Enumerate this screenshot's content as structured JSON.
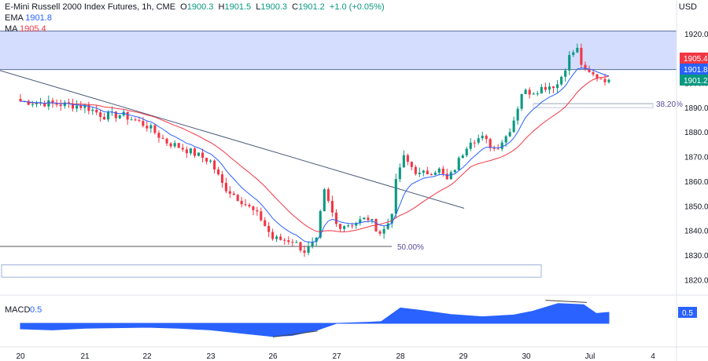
{
  "header": {
    "title": "E-Mini Russell 2000 Index Futures, 1h, CME",
    "open_label": "O",
    "open": "1900.3",
    "high_label": "H",
    "high": "1901.5",
    "low_label": "L",
    "low": "1900.3",
    "close_label": "C",
    "close": "1901.2",
    "change": "+1.0 (+0.05%)",
    "ema_label": "EMA",
    "ema_value": "1901.8",
    "ma_label": "MA",
    "ma_value": "1905.4",
    "currency": "USD"
  },
  "colors": {
    "up": "#089981",
    "down": "#f23645",
    "ema": "#2962ff",
    "ma": "#f23645",
    "trendline": "#4a5a7a",
    "zone": "#c7d2fe",
    "macd": "#2962ff"
  },
  "chart_data": [
    {
      "type": "candlestick",
      "title": "E-Mini Russell 2000 Index Futures, 1h, CME",
      "x_ticks": [
        "20",
        "21",
        "22",
        "23",
        "26",
        "27",
        "28",
        "29",
        "30",
        "Jul",
        "4"
      ],
      "y_ticks": [
        1820.0,
        1830.0,
        1840.0,
        1850.0,
        1860.0,
        1870.0,
        1880.0,
        1890.0,
        1900.0,
        1910.0,
        1920.0
      ],
      "ylim": [
        1815,
        1926
      ],
      "price_labels": [
        {
          "value": "1905.4",
          "color": "#f23645"
        },
        {
          "value": "1901.8",
          "color": "#2962ff"
        },
        {
          "value": "1901.2",
          "color": "#089981"
        }
      ],
      "annotations": [
        {
          "text": "50.00%",
          "price": 1833.5
        },
        {
          "text": "38.20%",
          "price": 1891.5
        }
      ],
      "resistance_zone": [
        1905.4,
        1921
      ],
      "support_zone": [
        1821,
        1826
      ],
      "trendline": {
        "from_price": 1905.0,
        "to_price": 1849.0
      },
      "close_path": [
        {
          "t": 0.0,
          "c": 1892.5
        },
        {
          "t": 0.5,
          "c": 1891.5
        },
        {
          "t": 1.0,
          "c": 1890.5
        },
        {
          "t": 1.3,
          "c": 1886.5
        },
        {
          "t": 1.6,
          "c": 1887.0
        },
        {
          "t": 2.0,
          "c": 1882.5
        },
        {
          "t": 2.3,
          "c": 1876.0
        },
        {
          "t": 2.6,
          "c": 1873.0
        },
        {
          "t": 3.0,
          "c": 1868.0
        },
        {
          "t": 3.2,
          "c": 1858.0
        },
        {
          "t": 3.5,
          "c": 1852.0
        },
        {
          "t": 3.8,
          "c": 1845.0
        },
        {
          "t": 4.0,
          "c": 1836.5
        },
        {
          "t": 4.3,
          "c": 1836.0
        },
        {
          "t": 4.5,
          "c": 1831.5
        },
        {
          "t": 4.7,
          "c": 1836.0
        },
        {
          "t": 4.75,
          "c": 1848.0
        },
        {
          "t": 4.8,
          "c": 1856.0
        },
        {
          "t": 5.0,
          "c": 1842.0
        },
        {
          "t": 5.2,
          "c": 1842.5
        },
        {
          "t": 5.5,
          "c": 1845.0
        },
        {
          "t": 5.7,
          "c": 1838.5
        },
        {
          "t": 5.85,
          "c": 1845.0
        },
        {
          "t": 5.95,
          "c": 1863.0
        },
        {
          "t": 6.05,
          "c": 1869.5
        },
        {
          "t": 6.3,
          "c": 1862.5
        },
        {
          "t": 6.6,
          "c": 1865.0
        },
        {
          "t": 6.75,
          "c": 1860.0
        },
        {
          "t": 6.9,
          "c": 1867.0
        },
        {
          "t": 7.1,
          "c": 1877.0
        },
        {
          "t": 7.3,
          "c": 1877.5
        },
        {
          "t": 7.5,
          "c": 1873.0
        },
        {
          "t": 7.7,
          "c": 1879.0
        },
        {
          "t": 7.85,
          "c": 1888.0
        },
        {
          "t": 7.9,
          "c": 1896.0
        },
        {
          "t": 8.1,
          "c": 1896.5
        },
        {
          "t": 8.3,
          "c": 1898.5
        },
        {
          "t": 8.5,
          "c": 1899.5
        },
        {
          "t": 8.7,
          "c": 1912.0
        },
        {
          "t": 8.8,
          "c": 1913.5
        },
        {
          "t": 8.9,
          "c": 1904.5
        },
        {
          "t": 9.1,
          "c": 1902.5
        },
        {
          "t": 9.3,
          "c": 1901.2
        }
      ]
    },
    {
      "type": "area",
      "title": "MACD",
      "label": "MACD",
      "value": "0.5",
      "zero_level": 0,
      "series": [
        {
          "t": 0.0,
          "v": -0.25
        },
        {
          "t": 0.5,
          "v": -0.3
        },
        {
          "t": 1.0,
          "v": -0.22
        },
        {
          "t": 1.5,
          "v": -0.2
        },
        {
          "t": 2.0,
          "v": -0.18
        },
        {
          "t": 2.5,
          "v": -0.22
        },
        {
          "t": 3.0,
          "v": -0.3
        },
        {
          "t": 3.5,
          "v": -0.45
        },
        {
          "t": 4.0,
          "v": -0.6
        },
        {
          "t": 4.3,
          "v": -0.55
        },
        {
          "t": 4.7,
          "v": -0.3
        },
        {
          "t": 5.0,
          "v": 0.0
        },
        {
          "t": 5.5,
          "v": 0.05
        },
        {
          "t": 5.7,
          "v": 0.08
        },
        {
          "t": 6.0,
          "v": 0.7
        },
        {
          "t": 6.3,
          "v": 0.6
        },
        {
          "t": 6.8,
          "v": 0.4
        },
        {
          "t": 7.3,
          "v": 0.3
        },
        {
          "t": 7.8,
          "v": 0.38
        },
        {
          "t": 8.1,
          "v": 0.55
        },
        {
          "t": 8.5,
          "v": 0.9
        },
        {
          "t": 8.9,
          "v": 0.85
        },
        {
          "t": 9.1,
          "v": 0.45
        },
        {
          "t": 9.3,
          "v": 0.5
        }
      ],
      "divergence_lines": [
        {
          "from": {
            "t": 4.0,
            "v": -0.62
          },
          "to": {
            "t": 4.7,
            "v": -0.35
          }
        },
        {
          "from": {
            "t": 8.3,
            "v": 1.05
          },
          "to": {
            "t": 8.95,
            "v": 0.95
          }
        }
      ]
    }
  ]
}
